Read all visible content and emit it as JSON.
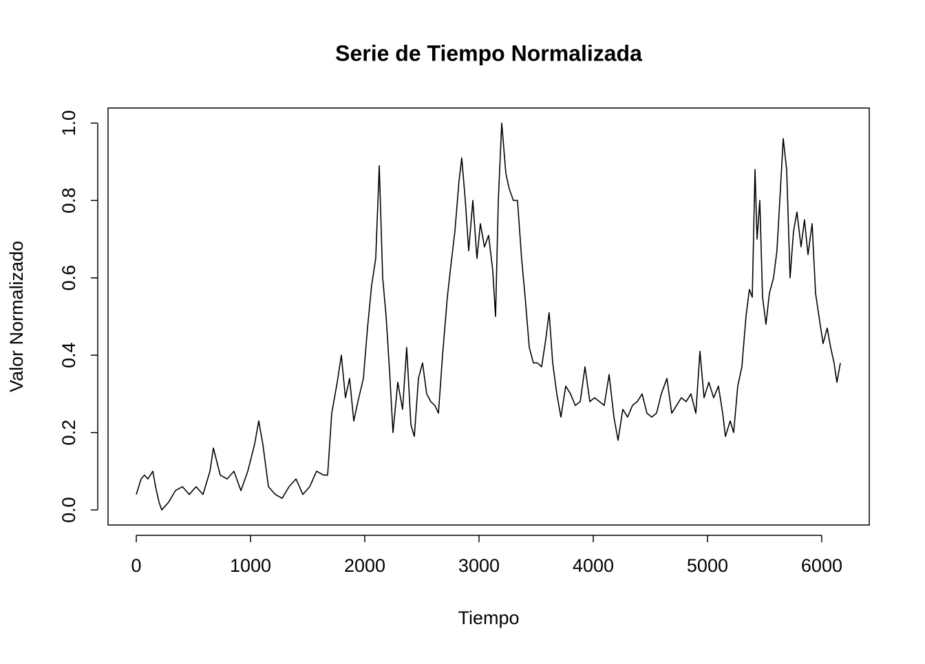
{
  "chart_data": {
    "type": "line",
    "title": "Serie de Tiempo Normalizada",
    "xlabel": "Tiempo",
    "ylabel": "Valor Normalizado",
    "color": "#000000",
    "x": [
      0,
      42,
      72,
      102,
      145,
      169,
      199,
      223,
      283,
      343,
      404,
      464,
      524,
      584,
      645,
      675,
      735,
      795,
      855,
      916,
      976,
      1036,
      1072,
      1108,
      1157,
      1217,
      1277,
      1337,
      1398,
      1458,
      1518,
      1578,
      1639,
      1675,
      1711,
      1759,
      1795,
      1831,
      1867,
      1904,
      1940,
      1988,
      2024,
      2060,
      2096,
      2127,
      2157,
      2187,
      2217,
      2247,
      2289,
      2331,
      2367,
      2404,
      2434,
      2470,
      2506,
      2542,
      2578,
      2614,
      2645,
      2681,
      2723,
      2753,
      2789,
      2825,
      2849,
      2880,
      2910,
      2946,
      2982,
      3012,
      3048,
      3084,
      3120,
      3145,
      3169,
      3199,
      3235,
      3265,
      3301,
      3337,
      3373,
      3404,
      3440,
      3476,
      3512,
      3548,
      3584,
      3614,
      3645,
      3681,
      3717,
      3759,
      3801,
      3843,
      3886,
      3928,
      3970,
      4012,
      4054,
      4096,
      4139,
      4181,
      4217,
      4259,
      4301,
      4343,
      4386,
      4428,
      4470,
      4512,
      4554,
      4596,
      4645,
      4687,
      4729,
      4771,
      4813,
      4855,
      4898,
      4934,
      4970,
      5012,
      5054,
      5096,
      5133,
      5157,
      5199,
      5229,
      5265,
      5301,
      5337,
      5367,
      5392,
      5416,
      5434,
      5458,
      5482,
      5512,
      5542,
      5578,
      5608,
      5633,
      5663,
      5693,
      5723,
      5753,
      5783,
      5819,
      5849,
      5880,
      5916,
      5946,
      5976,
      6012,
      6048,
      6078,
      6108,
      6133,
      6163
    ],
    "values": [
      0.04,
      0.08,
      0.09,
      0.08,
      0.1,
      0.06,
      0.02,
      0.0,
      0.02,
      0.05,
      0.06,
      0.04,
      0.06,
      0.04,
      0.1,
      0.16,
      0.09,
      0.08,
      0.1,
      0.05,
      0.1,
      0.17,
      0.23,
      0.17,
      0.06,
      0.04,
      0.03,
      0.06,
      0.08,
      0.04,
      0.06,
      0.1,
      0.09,
      0.09,
      0.25,
      0.33,
      0.4,
      0.29,
      0.34,
      0.23,
      0.28,
      0.34,
      0.47,
      0.58,
      0.65,
      0.89,
      0.6,
      0.5,
      0.36,
      0.2,
      0.33,
      0.26,
      0.42,
      0.22,
      0.19,
      0.34,
      0.38,
      0.3,
      0.28,
      0.27,
      0.25,
      0.4,
      0.55,
      0.63,
      0.72,
      0.85,
      0.91,
      0.8,
      0.67,
      0.8,
      0.65,
      0.74,
      0.68,
      0.71,
      0.62,
      0.5,
      0.8,
      1.0,
      0.87,
      0.83,
      0.8,
      0.8,
      0.65,
      0.55,
      0.42,
      0.38,
      0.38,
      0.37,
      0.44,
      0.51,
      0.38,
      0.3,
      0.24,
      0.32,
      0.3,
      0.27,
      0.28,
      0.37,
      0.28,
      0.29,
      0.28,
      0.27,
      0.35,
      0.24,
      0.18,
      0.26,
      0.24,
      0.27,
      0.28,
      0.3,
      0.25,
      0.24,
      0.25,
      0.3,
      0.34,
      0.25,
      0.27,
      0.29,
      0.28,
      0.3,
      0.25,
      0.41,
      0.29,
      0.33,
      0.29,
      0.32,
      0.25,
      0.19,
      0.23,
      0.2,
      0.32,
      0.37,
      0.5,
      0.57,
      0.55,
      0.88,
      0.7,
      0.8,
      0.55,
      0.48,
      0.56,
      0.6,
      0.67,
      0.8,
      0.96,
      0.88,
      0.6,
      0.72,
      0.77,
      0.68,
      0.75,
      0.66,
      0.74,
      0.56,
      0.5,
      0.43,
      0.47,
      0.42,
      0.38,
      0.33,
      0.38
    ],
    "xlim": [
      -247,
      6416
    ],
    "ylim": [
      -0.039,
      1.039
    ],
    "xticks": [
      0,
      1000,
      2000,
      3000,
      4000,
      5000,
      6000
    ],
    "yticks": [
      {
        "value": 0,
        "label": "0.0"
      },
      0.2,
      0.4,
      0.6,
      0.8,
      {
        "value": 1,
        "label": "1.0"
      }
    ]
  }
}
